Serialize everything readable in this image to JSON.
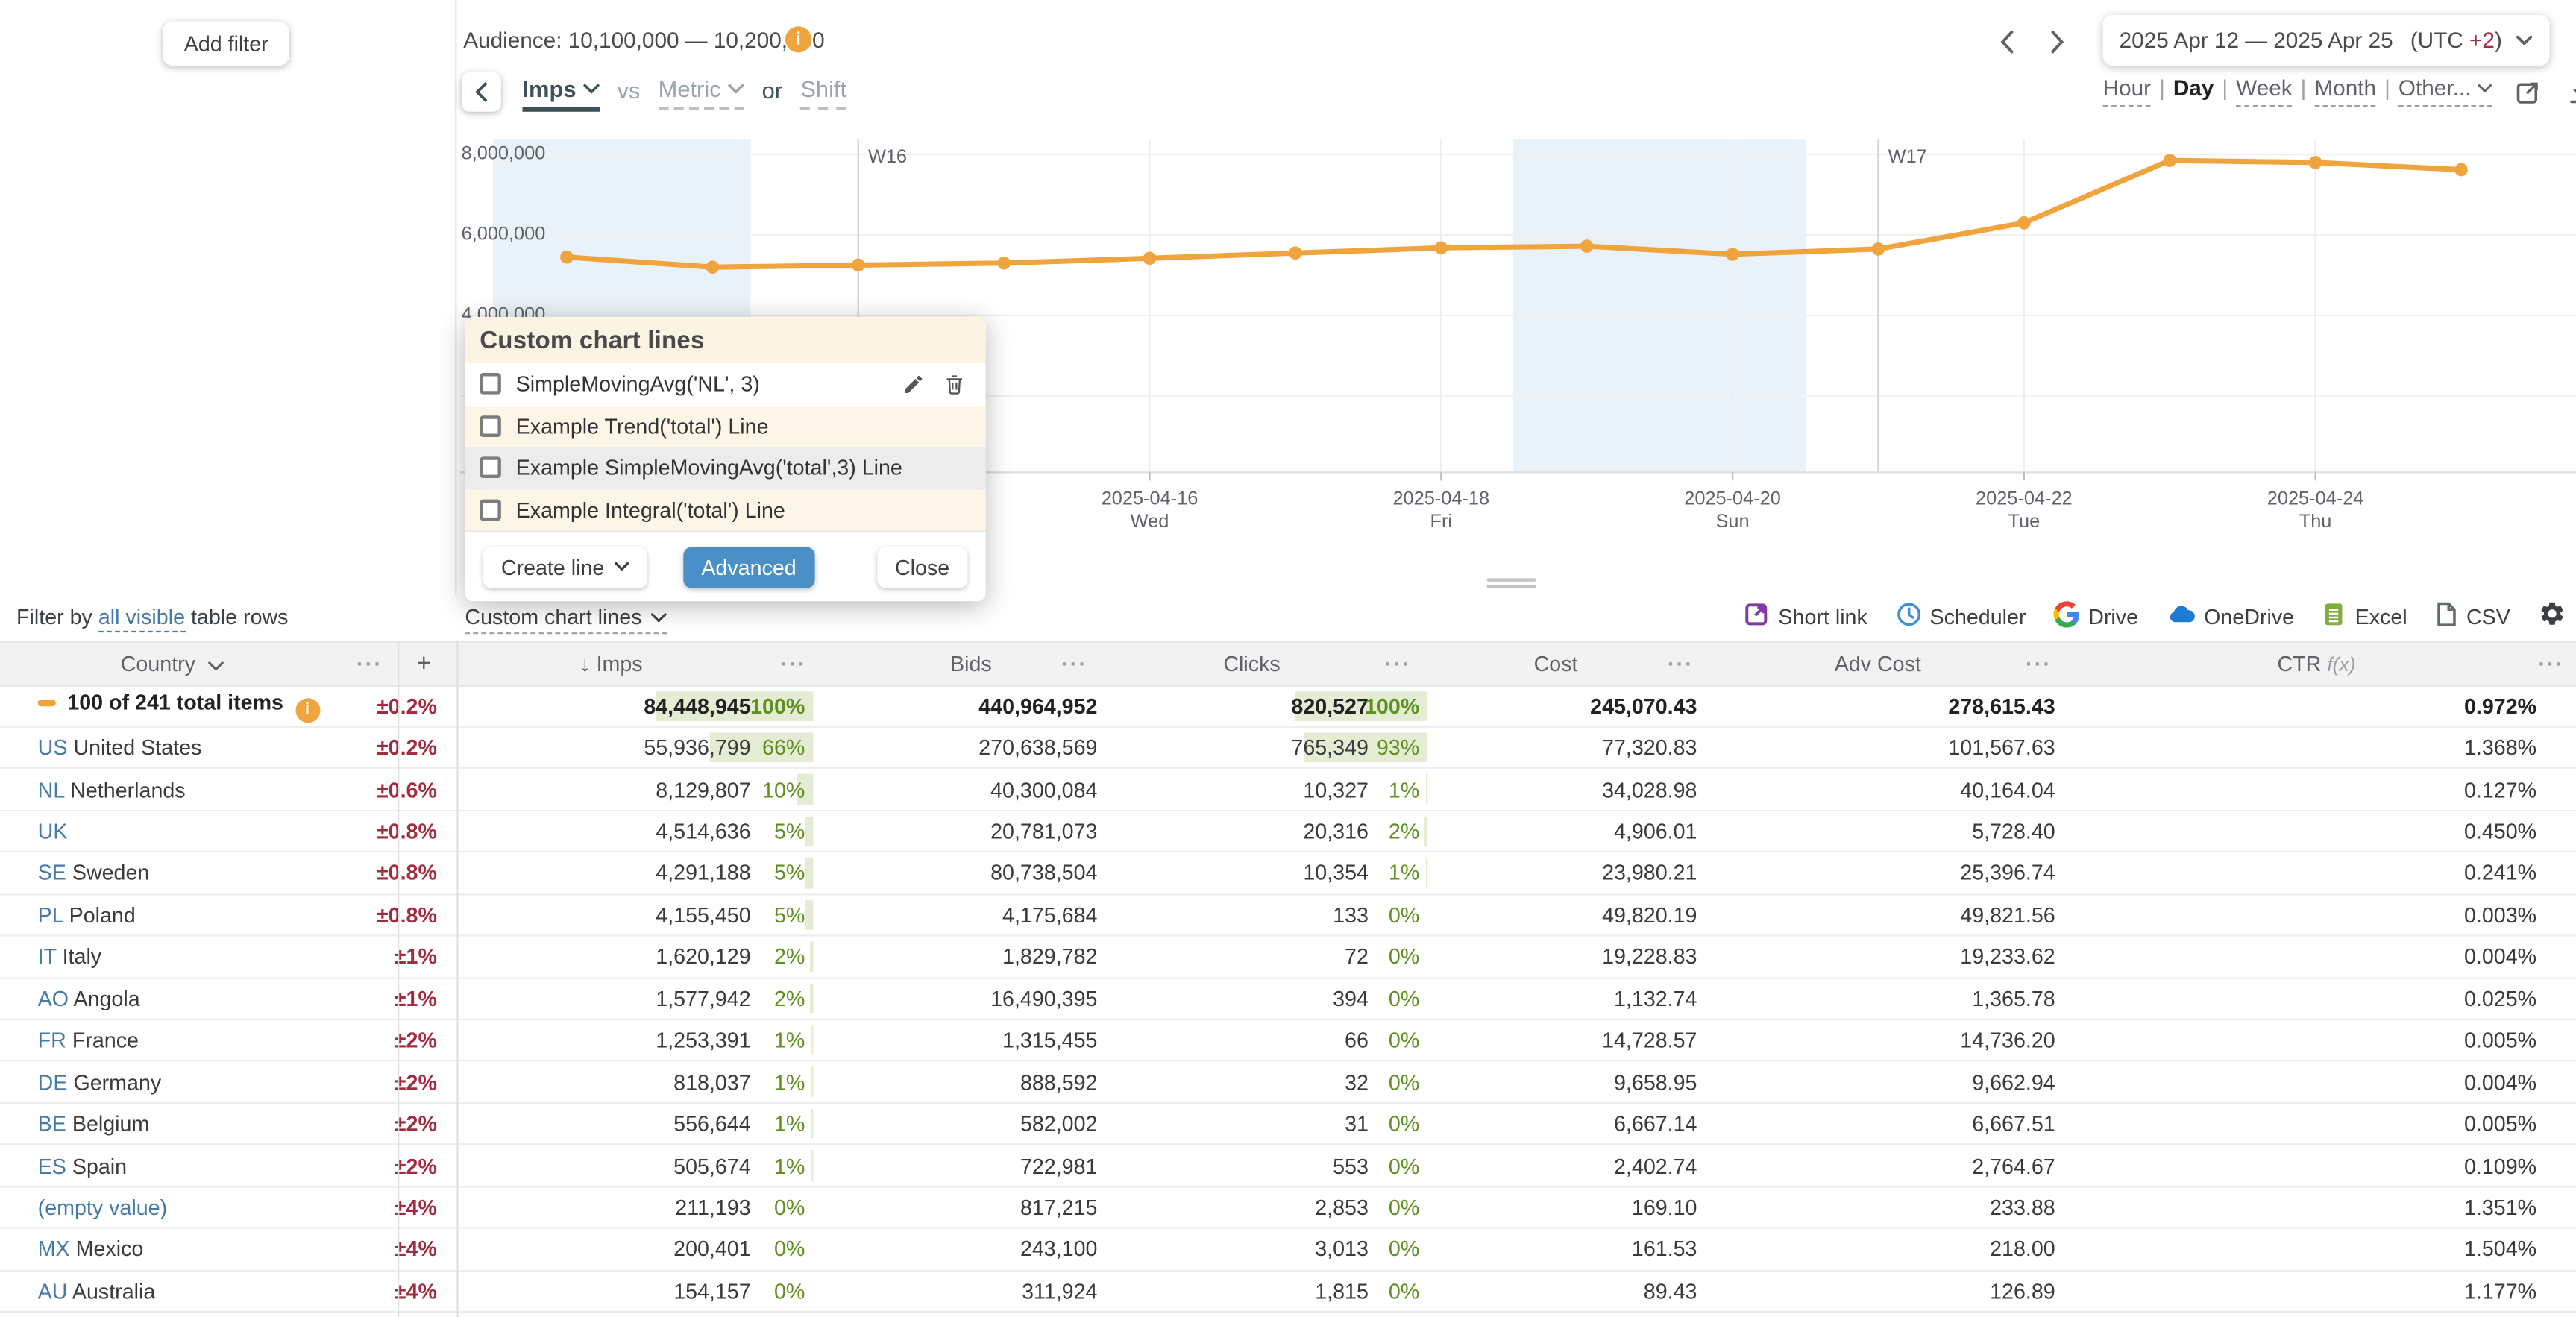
{
  "colors": {
    "accent_orange": "#f0a43e",
    "delta_red": "#a32b3f",
    "link_blue": "#4678a8",
    "pct_green": "#5f8f1f",
    "bar_green": "#e4edd4",
    "advanced_blue": "#4a90c7",
    "weekend_band_blue": "#eaf2f9"
  },
  "left_panel": {
    "add_filter": "Add filter"
  },
  "topbar": {
    "audience": "Audience: 10,100,000 — 10,200,000",
    "audience_info_icon": "info-icon",
    "prev_icon": "chevron-left-icon",
    "next_icon": "chevron-right-icon",
    "date_range": "2025 Apr 12 — 2025 Apr 25",
    "utc_pre": "(UTC ",
    "utc_offset": "+2",
    "utc_post": ")"
  },
  "metric_bar": {
    "back_icon": "chevron-left-icon",
    "primary": "Imps",
    "vs": "vs",
    "metric": "Metric",
    "or": "or",
    "shift": "Shift"
  },
  "granularity": {
    "options": [
      {
        "label": "Hour",
        "selected": false
      },
      {
        "label": "Day",
        "selected": true
      },
      {
        "label": "Week",
        "selected": false
      },
      {
        "label": "Month",
        "selected": false
      },
      {
        "label": "Other...",
        "selected": false,
        "chevron": true
      }
    ],
    "icons": [
      "external-link-icon",
      "download-icon",
      "gear-icon"
    ]
  },
  "chart_data": {
    "type": "line",
    "title": "",
    "xlabel": "",
    "ylabel": "Imps",
    "legend": false,
    "grid": true,
    "x": [
      "2025-04-12",
      "2025-04-13",
      "2025-04-14",
      "2025-04-15",
      "2025-04-16",
      "2025-04-17",
      "2025-04-18",
      "2025-04-19",
      "2025-04-20",
      "2025-04-21",
      "2025-04-22",
      "2025-04-23",
      "2025-04-24",
      "2025-04-25"
    ],
    "series": [
      {
        "name": "Imps",
        "color": "#f0a43e",
        "values": [
          5450000,
          5200000,
          5250000,
          5300000,
          5420000,
          5550000,
          5680000,
          5720000,
          5520000,
          5650000,
          6300000,
          7850000,
          7800000,
          7620000
        ]
      }
    ],
    "y_ticks": [
      {
        "value": 8000000,
        "label": "8,000,000"
      },
      {
        "value": 6000000,
        "label": "6,000,000"
      },
      {
        "value": 4000000,
        "label": "4,000,000"
      }
    ],
    "ylim": [
      3600000,
      8600000
    ],
    "x_tick_labels": [
      {
        "index": 4,
        "date": "2025-04-16",
        "dow": "Wed"
      },
      {
        "index": 6,
        "date": "2025-04-18",
        "dow": "Fri"
      },
      {
        "index": 8,
        "date": "2025-04-20",
        "dow": "Sun"
      },
      {
        "index": 10,
        "date": "2025-04-22",
        "dow": "Tue"
      },
      {
        "index": 12,
        "date": "2025-04-24",
        "dow": "Thu"
      }
    ],
    "week_markers": [
      {
        "label": "W16",
        "index": 2
      },
      {
        "label": "W17",
        "index": 9
      }
    ],
    "weekend_bands": [
      {
        "from": "2025-04-12",
        "to": "2025-04-13"
      },
      {
        "from": "2025-04-19",
        "to": "2025-04-20"
      }
    ]
  },
  "popup": {
    "title": "Custom chart lines",
    "items": [
      {
        "label": "SimpleMovingAvg('NL', 3)",
        "checked": false,
        "bg": "white",
        "actions": [
          "edit-pencil-icon",
          "delete-trash-icon"
        ]
      },
      {
        "label": "Example Trend('total') Line",
        "checked": false,
        "bg": "cream",
        "actions": []
      },
      {
        "label": "Example SimpleMovingAvg('total',3) Line",
        "checked": false,
        "bg": "gray",
        "actions": []
      },
      {
        "label": "Example Integral('total') Line",
        "checked": false,
        "bg": "cream",
        "actions": []
      }
    ],
    "create_line": "Create line",
    "advanced": "Advanced",
    "close": "Close"
  },
  "toolbar": {
    "filter_prefix": "Filter by ",
    "filter_link": "all visible",
    "filter_suffix": " table rows",
    "custom_lines_label": "Custom chart lines",
    "actions": [
      {
        "label": "Short link",
        "icon": "short-link-icon",
        "color": "#7d3aa5"
      },
      {
        "label": "Scheduler",
        "icon": "scheduler-clock-icon",
        "color": "#3f8fd2"
      },
      {
        "label": "Drive",
        "icon": "google-drive-icon",
        "color": "multi"
      },
      {
        "label": "OneDrive",
        "icon": "onedrive-cloud-icon",
        "color": "#1f7ad4"
      },
      {
        "label": "Excel",
        "icon": "excel-icon",
        "color": "#7fae3f"
      },
      {
        "label": "CSV",
        "icon": "csv-file-icon",
        "color": "#5f6b70"
      }
    ],
    "gear_icon": "gear-icon"
  },
  "table": {
    "columns": [
      "Country",
      "Imps",
      "Bids",
      "Clicks",
      "Cost",
      "Adv Cost",
      "CTR"
    ],
    "sort_column": "Imps",
    "ctr_fx": "f(x)",
    "column_menu_icon": "column-menu-dots",
    "add_column_label": "+",
    "totals": {
      "label": "100 of 241 total items",
      "info_icon": "info-icon",
      "delta": "±0.2%",
      "imps": "84,448,945",
      "imps_pct": "100%",
      "imps_pct_val": 100,
      "bids": "440,964,952",
      "clicks": "820,527",
      "clicks_pct": "100%",
      "clicks_pct_val": 100,
      "cost": "245,070.43",
      "adv_cost": "278,615.43",
      "ctr": "0.972%"
    },
    "rows": [
      {
        "code": "US",
        "name": "United States",
        "delta": "±0.2%",
        "imps": "55,936,799",
        "imps_pct": "66%",
        "imps_pct_val": 66,
        "bids": "270,638,569",
        "clicks": "765,349",
        "clicks_pct": "93%",
        "clicks_pct_val": 93,
        "cost": "77,320.83",
        "adv_cost": "101,567.63",
        "ctr": "1.368%"
      },
      {
        "code": "NL",
        "name": "Netherlands",
        "delta": "±0.6%",
        "imps": "8,129,807",
        "imps_pct": "10%",
        "imps_pct_val": 10,
        "bids": "40,300,084",
        "clicks": "10,327",
        "clicks_pct": "1%",
        "clicks_pct_val": 1,
        "cost": "34,028.98",
        "adv_cost": "40,164.04",
        "ctr": "0.127%"
      },
      {
        "code": "UK",
        "name": "",
        "delta": "±0.8%",
        "imps": "4,514,636",
        "imps_pct": "5%",
        "imps_pct_val": 5,
        "bids": "20,781,073",
        "clicks": "20,316",
        "clicks_pct": "2%",
        "clicks_pct_val": 2,
        "cost": "4,906.01",
        "adv_cost": "5,728.40",
        "ctr": "0.450%"
      },
      {
        "code": "SE",
        "name": "Sweden",
        "delta": "±0.8%",
        "imps": "4,291,188",
        "imps_pct": "5%",
        "imps_pct_val": 5,
        "bids": "80,738,504",
        "clicks": "10,354",
        "clicks_pct": "1%",
        "clicks_pct_val": 1,
        "cost": "23,980.21",
        "adv_cost": "25,396.74",
        "ctr": "0.241%"
      },
      {
        "code": "PL",
        "name": "Poland",
        "delta": "±0.8%",
        "imps": "4,155,450",
        "imps_pct": "5%",
        "imps_pct_val": 5,
        "bids": "4,175,684",
        "clicks": "133",
        "clicks_pct": "0%",
        "clicks_pct_val": 0,
        "cost": "49,820.19",
        "adv_cost": "49,821.56",
        "ctr": "0.003%"
      },
      {
        "code": "IT",
        "name": "Italy",
        "delta": "±1%",
        "imps": "1,620,129",
        "imps_pct": "2%",
        "imps_pct_val": 2,
        "bids": "1,829,782",
        "clicks": "72",
        "clicks_pct": "0%",
        "clicks_pct_val": 0,
        "cost": "19,228.83",
        "adv_cost": "19,233.62",
        "ctr": "0.004%"
      },
      {
        "code": "AO",
        "name": "Angola",
        "delta": "±1%",
        "imps": "1,577,942",
        "imps_pct": "2%",
        "imps_pct_val": 2,
        "bids": "16,490,395",
        "clicks": "394",
        "clicks_pct": "0%",
        "clicks_pct_val": 0,
        "cost": "1,132.74",
        "adv_cost": "1,365.78",
        "ctr": "0.025%"
      },
      {
        "code": "FR",
        "name": "France",
        "delta": "±2%",
        "imps": "1,253,391",
        "imps_pct": "1%",
        "imps_pct_val": 1,
        "bids": "1,315,455",
        "clicks": "66",
        "clicks_pct": "0%",
        "clicks_pct_val": 0,
        "cost": "14,728.57",
        "adv_cost": "14,736.20",
        "ctr": "0.005%"
      },
      {
        "code": "DE",
        "name": "Germany",
        "delta": "±2%",
        "imps": "818,037",
        "imps_pct": "1%",
        "imps_pct_val": 1,
        "bids": "888,592",
        "clicks": "32",
        "clicks_pct": "0%",
        "clicks_pct_val": 0,
        "cost": "9,658.95",
        "adv_cost": "9,662.94",
        "ctr": "0.004%"
      },
      {
        "code": "BE",
        "name": "Belgium",
        "delta": "±2%",
        "imps": "556,644",
        "imps_pct": "1%",
        "imps_pct_val": 1,
        "bids": "582,002",
        "clicks": "31",
        "clicks_pct": "0%",
        "clicks_pct_val": 0,
        "cost": "6,667.14",
        "adv_cost": "6,667.51",
        "ctr": "0.005%"
      },
      {
        "code": "ES",
        "name": "Spain",
        "delta": "±2%",
        "imps": "505,674",
        "imps_pct": "1%",
        "imps_pct_val": 1,
        "bids": "722,981",
        "clicks": "553",
        "clicks_pct": "0%",
        "clicks_pct_val": 0,
        "cost": "2,402.74",
        "adv_cost": "2,764.67",
        "ctr": "0.109%"
      },
      {
        "code": "",
        "name": "(empty value)",
        "empty": true,
        "delta": "±4%",
        "imps": "211,193",
        "imps_pct": "0%",
        "imps_pct_val": 0,
        "bids": "817,215",
        "clicks": "2,853",
        "clicks_pct": "0%",
        "clicks_pct_val": 0,
        "cost": "169.10",
        "adv_cost": "233.88",
        "ctr": "1.351%"
      },
      {
        "code": "MX",
        "name": "Mexico",
        "delta": "±4%",
        "imps": "200,401",
        "imps_pct": "0%",
        "imps_pct_val": 0,
        "bids": "243,100",
        "clicks": "3,013",
        "clicks_pct": "0%",
        "clicks_pct_val": 0,
        "cost": "161.53",
        "adv_cost": "218.00",
        "ctr": "1.504%"
      },
      {
        "code": "AU",
        "name": "Australia",
        "delta": "±4%",
        "imps": "154,157",
        "imps_pct": "0%",
        "imps_pct_val": 0,
        "bids": "311,924",
        "clicks": "1,815",
        "clicks_pct": "0%",
        "clicks_pct_val": 0,
        "cost": "89.43",
        "adv_cost": "126.89",
        "ctr": "1.177%"
      }
    ]
  }
}
